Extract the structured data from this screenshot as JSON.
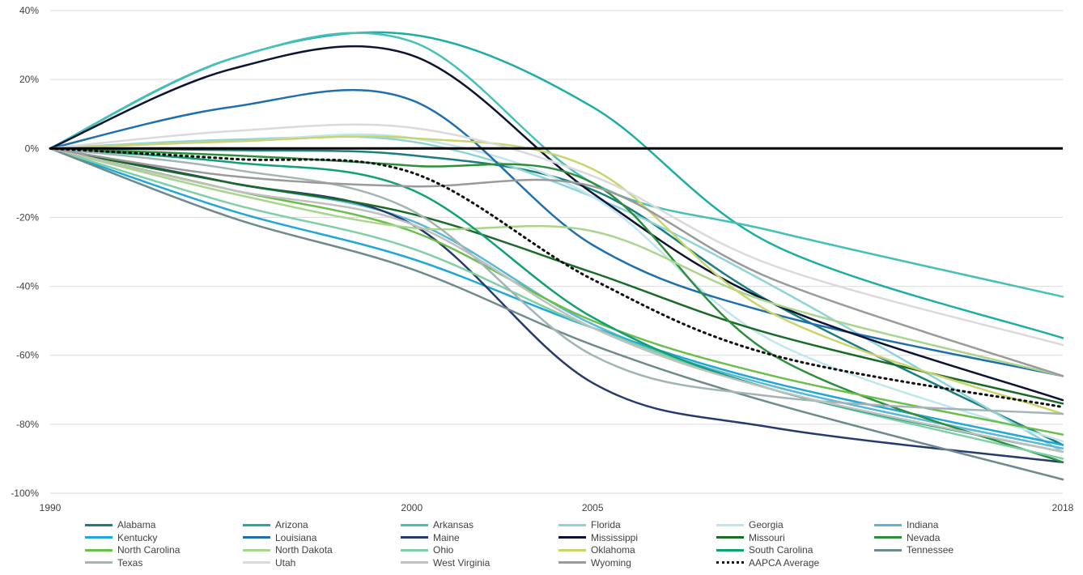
{
  "chart_data": {
    "type": "line",
    "x": [
      "1990",
      "1995",
      "2000",
      "2005",
      "2010",
      "2018"
    ],
    "x_tick_labels": [
      "1990",
      "2000",
      "2005",
      "2018"
    ],
    "y_tick_labels": [
      "40%",
      "20%",
      "0%",
      "-20%",
      "-40%",
      "-60%",
      "-80%",
      "-100%"
    ],
    "ylim": [
      -100,
      40
    ],
    "grid": true,
    "legend_position": "bottom",
    "baseline": 0,
    "series": [
      {
        "name": "Alabama",
        "color": "#1b7e7e",
        "values": [
          0,
          -0.5,
          -2,
          -12,
          -45,
          -86
        ]
      },
      {
        "name": "Arizona",
        "color": "#1aaea4",
        "values": [
          0,
          26,
          33,
          12,
          -28,
          -55
        ]
      },
      {
        "name": "Arkansas",
        "color": "#45c0b8",
        "values": [
          0,
          26,
          31,
          -10,
          -24,
          -43
        ]
      },
      {
        "name": "Florida",
        "color": "#8fd3da",
        "values": [
          0,
          2.5,
          2,
          -14,
          -40,
          -88
        ]
      },
      {
        "name": "Georgia",
        "color": "#bfe6ef",
        "values": [
          0,
          2,
          3,
          -14,
          -56,
          -85
        ]
      },
      {
        "name": "Indiana",
        "color": "#5ab8d6",
        "values": [
          0,
          -10,
          -21,
          -51,
          -69,
          -87
        ]
      },
      {
        "name": "Kentucky",
        "color": "#1ea7d8",
        "values": [
          0,
          -18,
          -32,
          -52,
          -68,
          -86
        ]
      },
      {
        "name": "Louisiana",
        "color": "#1f6fae",
        "values": [
          0,
          12,
          14,
          -28,
          -48,
          -66
        ]
      },
      {
        "name": "Maine",
        "color": "#263a6e",
        "values": [
          0,
          -10,
          -22,
          -68,
          -81,
          -91
        ]
      },
      {
        "name": "Mississippi",
        "color": "#0d1433",
        "values": [
          0,
          23,
          27,
          -13,
          -45,
          -73
        ]
      },
      {
        "name": "Missouri",
        "color": "#1a6a28",
        "values": [
          0,
          -10,
          -19,
          -36,
          -54,
          -74
        ]
      },
      {
        "name": "Nevada",
        "color": "#2d8f3c",
        "values": [
          0,
          -2,
          -5,
          -10,
          -60,
          -91
        ]
      },
      {
        "name": "North Carolina",
        "color": "#6abf4b",
        "values": [
          0,
          -12,
          -24,
          -50,
          -66,
          -83
        ]
      },
      {
        "name": "North Dakota",
        "color": "#a9d58c",
        "values": [
          0,
          -13,
          -23,
          -24,
          -45,
          -66
        ]
      },
      {
        "name": "Ohio",
        "color": "#7fcfa6",
        "values": [
          0,
          -16,
          -29,
          -52,
          -70,
          -90
        ]
      },
      {
        "name": "Oklahoma",
        "color": "#c9d56a",
        "values": [
          0,
          2,
          3,
          -6,
          -48,
          -77
        ]
      },
      {
        "name": "South Carolina",
        "color": "#10a173",
        "values": [
          0,
          -4,
          -12,
          -49,
          -70,
          -88
        ]
      },
      {
        "name": "Tennessee",
        "color": "#6f8a8c",
        "values": [
          0,
          -20,
          -35,
          -57,
          -74,
          -96
        ]
      },
      {
        "name": "Texas",
        "color": "#a3b4b5",
        "values": [
          0,
          -6,
          -18,
          -60,
          -72,
          -77
        ]
      },
      {
        "name": "Utah",
        "color": "#dadada",
        "values": [
          0,
          5,
          6,
          -8,
          -34,
          -57
        ]
      },
      {
        "name": "West Virginia",
        "color": "#c0c0c0",
        "values": [
          0,
          -12,
          -22,
          -52,
          -70,
          -88
        ]
      },
      {
        "name": "Wyoming",
        "color": "#9a9a9a",
        "values": [
          0,
          -8,
          -11,
          -11,
          -38,
          -66
        ]
      },
      {
        "name": "AAPCA Average",
        "color": "#111111",
        "dashed": true,
        "values": [
          0,
          -3,
          -7,
          -38,
          -60,
          -75
        ]
      }
    ]
  }
}
